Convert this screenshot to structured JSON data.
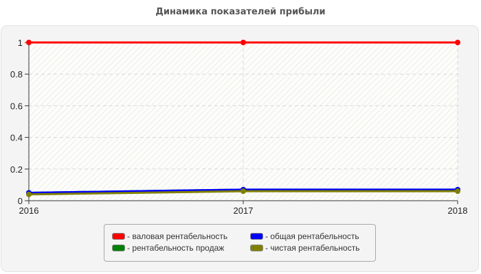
{
  "title": "Динамика показателей прибыли",
  "chart_data": {
    "type": "line",
    "title": "Динамика показателей прибыли",
    "xlabel": "",
    "ylabel": "",
    "categories": [
      "2016",
      "2017",
      "2018"
    ],
    "ylim": [
      0,
      1
    ],
    "yticks": [
      "0",
      "0.2",
      "0.4",
      "0.6",
      "0.8",
      "1"
    ],
    "grid": true,
    "legend_position": "bottom",
    "series": [
      {
        "name": "валовая рентабельность",
        "color": "#ff0000",
        "values": [
          1,
          1,
          1
        ]
      },
      {
        "name": "общая рентабельность",
        "color": "#0000ff",
        "values": [
          0.05,
          0.07,
          0.07
        ]
      },
      {
        "name": "рентабельность продаж",
        "color": "#008000",
        "values": [
          0.05,
          0.07,
          0.07
        ]
      },
      {
        "name": "чистая рентабельность",
        "color": "#808000",
        "values": [
          0.04,
          0.06,
          0.06
        ]
      }
    ]
  },
  "legend": {
    "items": [
      {
        "label": "- валовая рентабельность",
        "color": "#ff0000"
      },
      {
        "label": "- общая рентабельность",
        "color": "#0000ff"
      },
      {
        "label": "- рентабельность продаж",
        "color": "#008000"
      },
      {
        "label": "- чистая рентабельность",
        "color": "#808000"
      }
    ]
  }
}
